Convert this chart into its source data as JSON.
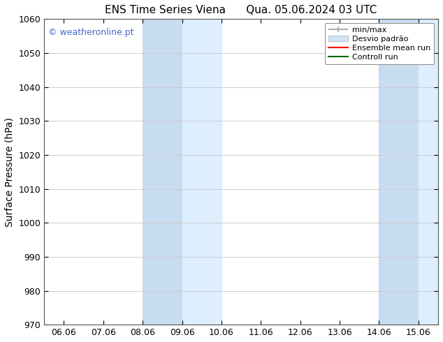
{
  "title_left": "ENS Time Series Viena",
  "title_right": "Qua. 05.06.2024 03 UTC",
  "ylabel": "Surface Pressure (hPa)",
  "ylim": [
    970,
    1060
  ],
  "yticks": [
    970,
    980,
    990,
    1000,
    1010,
    1020,
    1030,
    1040,
    1050,
    1060
  ],
  "x_tick_labels": [
    "06.06",
    "07.06",
    "08.06",
    "09.06",
    "10.06",
    "11.06",
    "12.06",
    "13.06",
    "14.06",
    "15.06"
  ],
  "x_tick_positions": [
    0,
    1,
    2,
    3,
    4,
    5,
    6,
    7,
    8,
    9
  ],
  "background_color": "#ffffff",
  "grid_color": "#cccccc",
  "watermark_text": "© weatheronline.pt",
  "watermark_color": "#4466cc",
  "band1_xstart": 2.0,
  "band1_xend": 3.0,
  "band2_xstart": 3.0,
  "band2_xend": 4.0,
  "band3_xstart": 9.0,
  "band3_xend": 10.0,
  "shading_color_dark": "#c8dcf0",
  "shading_color_light": "#ddeeff",
  "legend_minmax_color": "#aaaaaa",
  "legend_desvio_color": "#d0e4f4",
  "legend_ensemble_color": "#ff0000",
  "legend_control_color": "#006600"
}
